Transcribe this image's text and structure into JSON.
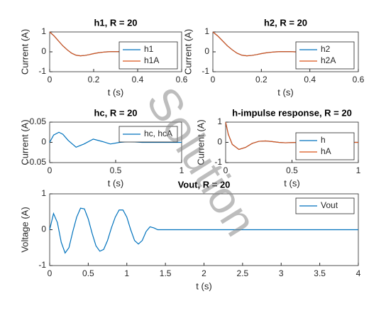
{
  "watermark": "Solution",
  "chart_data": [
    {
      "type": "line",
      "title": "h1, R = 20",
      "xlabel": "t (s)",
      "ylabel": "Current (A)",
      "x": [
        0,
        0.02,
        0.04,
        0.06,
        0.08,
        0.1,
        0.12,
        0.14,
        0.16,
        0.18,
        0.2,
        0.22,
        0.24,
        0.26,
        0.28,
        0.3,
        0.32,
        0.34,
        0.36
      ],
      "series": [
        {
          "name": "h1",
          "color": "#0072bd",
          "values": [
            1,
            0.8,
            0.55,
            0.3,
            0.1,
            -0.07,
            -0.17,
            -0.2,
            -0.18,
            -0.14,
            -0.09,
            -0.05,
            -0.02,
            0,
            0.01,
            0.01,
            0.01,
            0,
            0
          ]
        },
        {
          "name": "h1A",
          "color": "#d95319",
          "values": [
            1,
            0.8,
            0.55,
            0.3,
            0.1,
            -0.07,
            -0.17,
            -0.2,
            -0.18,
            -0.14,
            -0.09,
            -0.05,
            -0.02,
            0,
            0.01,
            0.01,
            0.01,
            0,
            0
          ]
        }
      ],
      "xlim": [
        0,
        0.6
      ],
      "xticks": [
        0,
        0.2,
        0.4,
        0.6
      ],
      "ylim": [
        -1,
        1
      ],
      "yticks": [
        -1,
        0,
        1
      ],
      "legend": "southeast"
    },
    {
      "type": "line",
      "title": "h2, R = 20",
      "xlabel": "t (s)",
      "ylabel": "Current (A)",
      "x": [
        0,
        0.02,
        0.04,
        0.06,
        0.08,
        0.1,
        0.12,
        0.14,
        0.16,
        0.18,
        0.2,
        0.22,
        0.24,
        0.26,
        0.28,
        0.3,
        0.32,
        0.34,
        0.36
      ],
      "series": [
        {
          "name": "h2",
          "color": "#0072bd",
          "values": [
            1,
            0.8,
            0.55,
            0.3,
            0.1,
            -0.07,
            -0.17,
            -0.2,
            -0.18,
            -0.14,
            -0.09,
            -0.05,
            -0.02,
            0,
            0.01,
            0.01,
            0.01,
            0,
            0
          ]
        },
        {
          "name": "h2A",
          "color": "#d95319",
          "values": [
            1,
            0.8,
            0.55,
            0.3,
            0.1,
            -0.07,
            -0.17,
            -0.2,
            -0.18,
            -0.14,
            -0.09,
            -0.05,
            -0.02,
            0,
            0.01,
            0.01,
            0.01,
            0,
            0
          ]
        }
      ],
      "xlim": [
        0,
        0.6
      ],
      "xticks": [
        0,
        0.2,
        0.4,
        0.6
      ],
      "ylim": [
        -1,
        1
      ],
      "yticks": [
        -1,
        0,
        1
      ],
      "legend": "southeast"
    },
    {
      "type": "line",
      "title": "hc, R = 20",
      "xlabel": "t (s)",
      "ylabel": "Current (A)",
      "x": [
        0,
        0.03,
        0.07,
        0.1,
        0.14,
        0.2,
        0.26,
        0.33,
        0.4,
        0.46,
        0.53,
        0.6,
        0.7,
        0.8,
        1
      ],
      "series": [
        {
          "name": "hc, hcA",
          "color": "#0072bd",
          "values": [
            0,
            0.018,
            0.025,
            0.02,
            0.005,
            -0.012,
            -0.004,
            0.008,
            0.002,
            -0.004,
            0,
            0.002,
            0,
            0,
            0
          ]
        }
      ],
      "xlim": [
        0,
        1
      ],
      "xticks": [
        0,
        0.5,
        1
      ],
      "ylim": [
        -0.05,
        0.05
      ],
      "yticks": [
        -0.05,
        0,
        0.05
      ],
      "legend": "northeast"
    },
    {
      "type": "line",
      "title": "h-impulse response, R = 20",
      "xlabel": "t (s)",
      "ylabel": "Current (A)",
      "x": [
        0,
        0.02,
        0.05,
        0.1,
        0.15,
        0.2,
        0.25,
        0.3,
        0.35,
        0.4,
        0.45,
        0.5,
        0.55,
        1
      ],
      "series": [
        {
          "name": "h",
          "color": "#0072bd",
          "values": [
            1,
            0.4,
            -0.1,
            -0.35,
            -0.25,
            -0.05,
            0.05,
            0.07,
            0.04,
            0,
            -0.02,
            -0.01,
            0,
            0
          ]
        },
        {
          "name": "hA",
          "color": "#d95319",
          "values": [
            1,
            0.4,
            -0.1,
            -0.35,
            -0.25,
            -0.05,
            0.05,
            0.07,
            0.04,
            0,
            -0.02,
            -0.01,
            0,
            0
          ]
        }
      ],
      "xlim": [
        0,
        1
      ],
      "xticks": [
        0,
        0.5,
        1
      ],
      "ylim": [
        -1,
        1
      ],
      "yticks": [
        -1,
        0,
        1
      ],
      "legend": "southeast"
    },
    {
      "type": "line",
      "title": "Vout, R = 20",
      "xlabel": "t (s)",
      "ylabel": "Voltage (A)",
      "x": [
        0,
        0.05,
        0.1,
        0.15,
        0.2,
        0.25,
        0.3,
        0.35,
        0.4,
        0.45,
        0.5,
        0.55,
        0.6,
        0.65,
        0.7,
        0.75,
        0.8,
        0.85,
        0.9,
        0.95,
        1,
        1.05,
        1.1,
        1.15,
        1.2,
        1.25,
        1.3,
        1.35,
        1.4,
        1.5,
        4
      ],
      "series": [
        {
          "name": "Vout",
          "color": "#0072bd",
          "values": [
            0,
            0.45,
            0.2,
            -0.35,
            -0.65,
            -0.5,
            -0.05,
            0.35,
            0.6,
            0.58,
            0.3,
            -0.1,
            -0.45,
            -0.6,
            -0.55,
            -0.3,
            0.05,
            0.35,
            0.55,
            0.55,
            0.35,
            0,
            -0.3,
            -0.4,
            -0.3,
            -0.05,
            0.08,
            0.05,
            0,
            0,
            0
          ]
        }
      ],
      "xlim": [
        0,
        4
      ],
      "xticks": [
        0,
        0.5,
        1,
        1.5,
        2,
        2.5,
        3,
        3.5,
        4
      ],
      "ylim": [
        -1,
        1
      ],
      "yticks": [
        -1,
        0,
        1
      ],
      "legend": "northeast"
    }
  ]
}
